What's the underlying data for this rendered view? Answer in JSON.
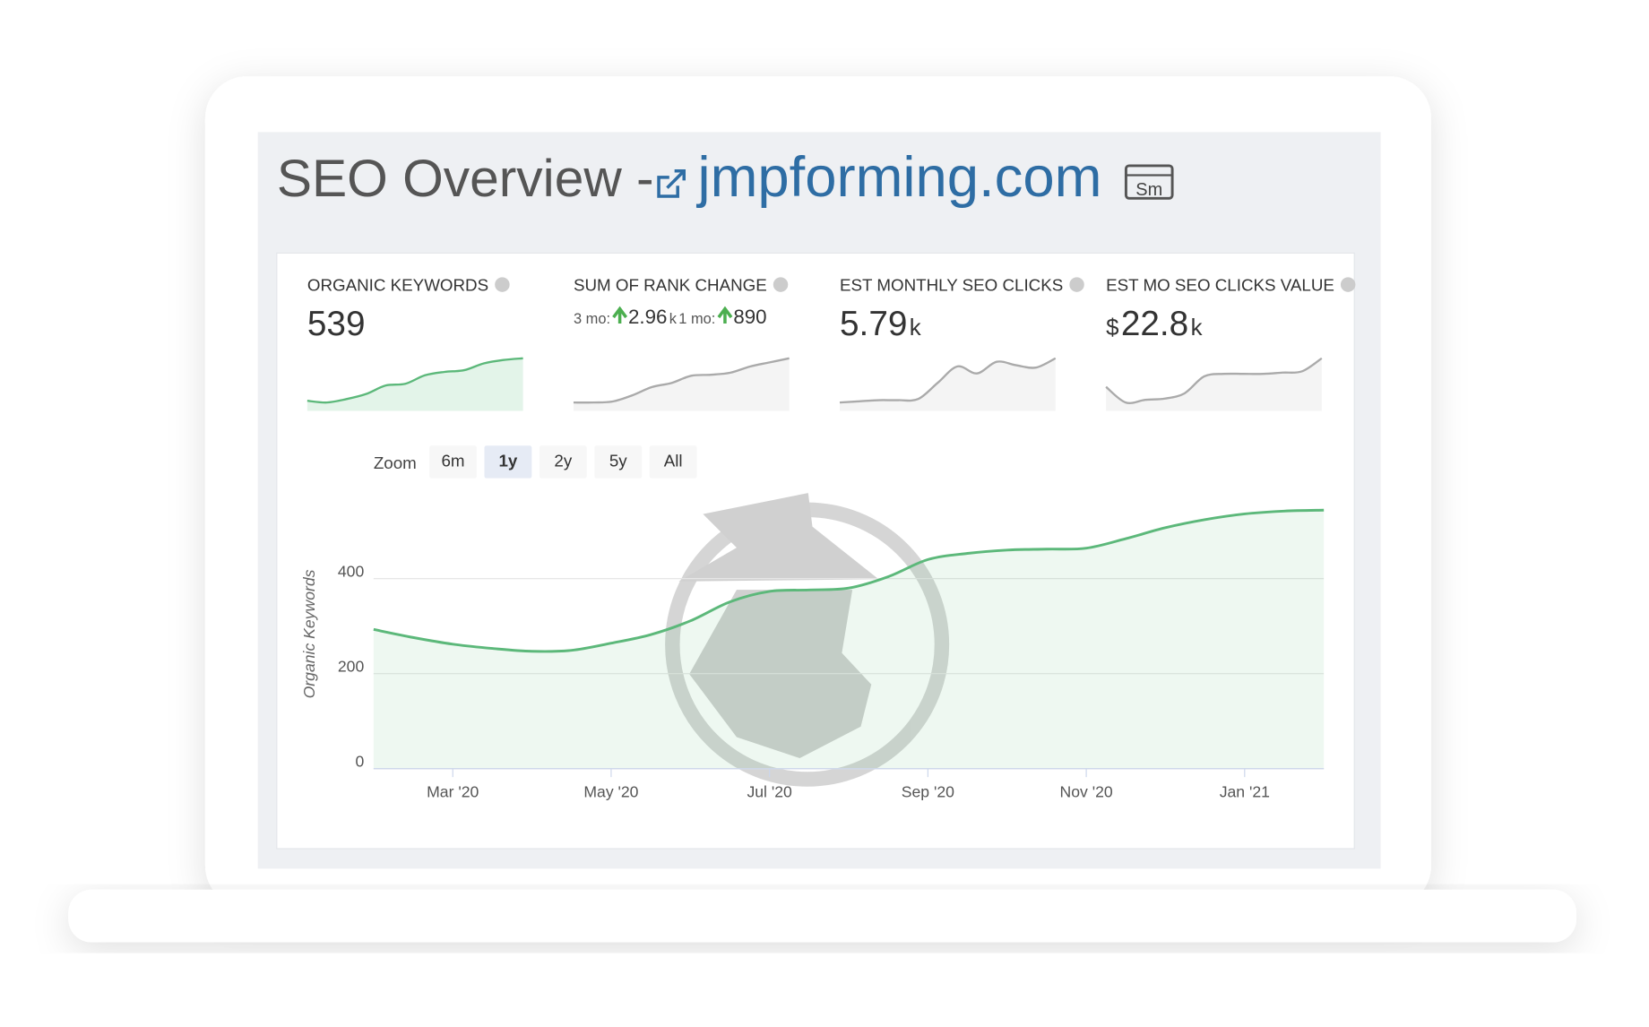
{
  "header": {
    "title": "SEO Overview -",
    "domain": "jmpforming.com",
    "badge": "Sm"
  },
  "stats": [
    {
      "label": "ORGANIC KEYWORDS",
      "value": "539",
      "trend": [
        20,
        19,
        21,
        24,
        29,
        30,
        35,
        37,
        38,
        42,
        44,
        45
      ]
    },
    {
      "label": "SUM OF RANK CHANGE",
      "periods": [
        {
          "label": "3 mo:",
          "value": "2.96",
          "unit": "k"
        },
        {
          "label": "1 mo:",
          "value": "890"
        }
      ],
      "trend": [
        2,
        2,
        3,
        9,
        17,
        21,
        28,
        29,
        31,
        37,
        41,
        45
      ]
    },
    {
      "label": "EST MONTHLY SEO CLICKS",
      "value": "5.79",
      "unit": "k",
      "trend": [
        10,
        11,
        12,
        12,
        13,
        27,
        41,
        35,
        45,
        42,
        40,
        48
      ]
    },
    {
      "label": "EST MO SEO CLICKS VALUE",
      "prefix": "$",
      "value": "22.8",
      "unit": "k",
      "trend": [
        30,
        18,
        20,
        21,
        25,
        38,
        40,
        40,
        40,
        41,
        42,
        52
      ]
    }
  ],
  "zoom": {
    "label": "Zoom",
    "options": [
      "6m",
      "1y",
      "2y",
      "5y",
      "All"
    ],
    "active": 1
  },
  "chart_data": {
    "type": "area",
    "y_label": "Organic Keywords",
    "categories": [
      null,
      null,
      "Mar '20",
      null,
      null,
      null,
      "May '20",
      null,
      null,
      null,
      "Jul '20",
      null,
      null,
      null,
      "Sep '20",
      null,
      null,
      null,
      "Nov '20",
      null,
      null,
      null,
      "Jan '21",
      null,
      null
    ],
    "values": [
      293,
      276,
      262,
      253,
      247,
      249,
      264,
      282,
      311,
      351,
      373,
      376,
      380,
      404,
      440,
      453,
      460,
      462,
      464,
      484,
      507,
      524,
      536,
      542,
      544
    ],
    "color": "#5cb87a",
    "ylim": [
      0,
      600
    ],
    "yticks": [
      0,
      200,
      400
    ],
    "grid": true
  }
}
